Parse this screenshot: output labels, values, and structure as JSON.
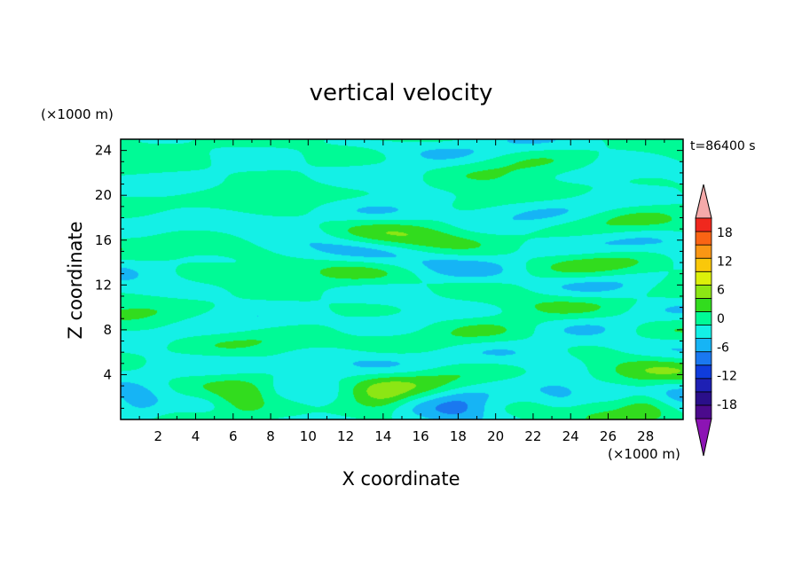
{
  "chart_data": {
    "type": "heatmap",
    "title": "vertical velocity",
    "xlabel": "X coordinate",
    "ylabel": "Z coordinate",
    "x_unit": "(×1000 m)",
    "y_unit": "(×1000 m)",
    "time_label": "t=86400 s",
    "xlim": [
      0,
      30
    ],
    "ylim": [
      0,
      25
    ],
    "x_ticks": [
      2,
      4,
      6,
      8,
      10,
      12,
      14,
      16,
      18,
      20,
      22,
      24,
      26,
      28
    ],
    "y_ticks": [
      4,
      8,
      12,
      16,
      20,
      24
    ],
    "colorbar": {
      "levels": [
        -21,
        -18,
        -15,
        -12,
        -9,
        -6,
        -3,
        0,
        3,
        6,
        9,
        12,
        15,
        18,
        21
      ],
      "tick_labels": [
        "18",
        "12",
        "6",
        "0",
        "-6",
        "-12",
        "-18"
      ],
      "tick_values": [
        18,
        12,
        6,
        0,
        -6,
        -12,
        -18
      ],
      "colors": [
        "#4b0a8c",
        "#2a0f8a",
        "#1e20b4",
        "#0f3cdc",
        "#1a78f0",
        "#16b4f5",
        "#14f0e6",
        "#00fa96",
        "#32dc1e",
        "#8ce614",
        "#dcf00a",
        "#fac80a",
        "#fa9614",
        "#fa6414",
        "#f0281e"
      ],
      "under_color": "#8c14b4",
      "over_color": "#f5aaaa"
    },
    "features": [
      {
        "kind": "updraft",
        "x": 6.5,
        "z": 1.8,
        "peak": 5.5
      },
      {
        "kind": "updraft",
        "x": 14.0,
        "z": 1.8,
        "peak": 5.0
      },
      {
        "kind": "updraft",
        "x": 28.0,
        "z": 1.6,
        "peak": 5.5
      },
      {
        "kind": "downdraft",
        "x": 1.0,
        "z": 1.2,
        "peak": -4.0
      },
      {
        "kind": "downdraft",
        "x": 10.5,
        "z": 1.5,
        "peak": -3.0
      },
      {
        "kind": "downdraft",
        "x": 18.0,
        "z": 1.2,
        "peak": -3.5
      },
      {
        "kind": "downdraft",
        "x": 23.5,
        "z": 1.8,
        "peak": -3.5
      }
    ]
  }
}
